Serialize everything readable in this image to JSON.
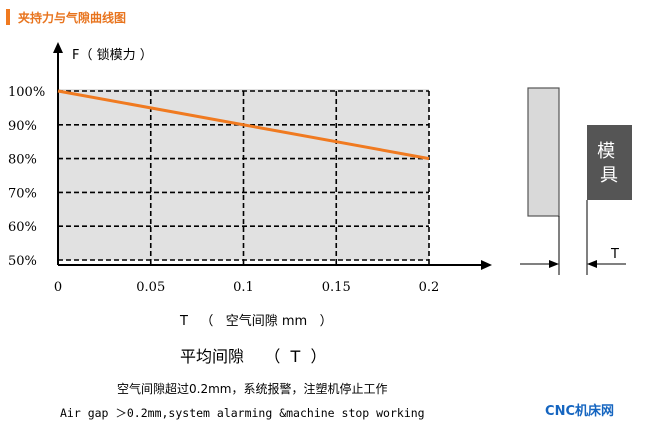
{
  "header": {
    "title": "夹持力与气隙曲线图",
    "accent": "#f07a20"
  },
  "chart_data": {
    "type": "line",
    "ylabel": "F（  锁模力  ）",
    "xlabel": "T   （   空气间隙 mm   ）",
    "x_ticks": [
      "0",
      "0.05",
      "0.1",
      "0.15",
      "0.2"
    ],
    "y_ticks": [
      "100%",
      "90%",
      "80%",
      "70%",
      "60%",
      "50%"
    ],
    "xlim": [
      0,
      0.2
    ],
    "ylim": [
      50,
      100
    ],
    "grid": true,
    "series": [
      {
        "color": "#f07a20",
        "x": [
          0,
          0.2
        ],
        "y": [
          100,
          80
        ]
      }
    ]
  },
  "diagram": {
    "mold_label": "模\n具",
    "gap_label": "T"
  },
  "caption": {
    "title": "平均间隙    （  T  ）",
    "line_cn": "空气间隙超过0.2mm，系统报警，注塑机停止工作",
    "line_en": "Air gap ＞0.2mm,system alarming &machine stop working"
  },
  "watermark": "CNC机床网"
}
